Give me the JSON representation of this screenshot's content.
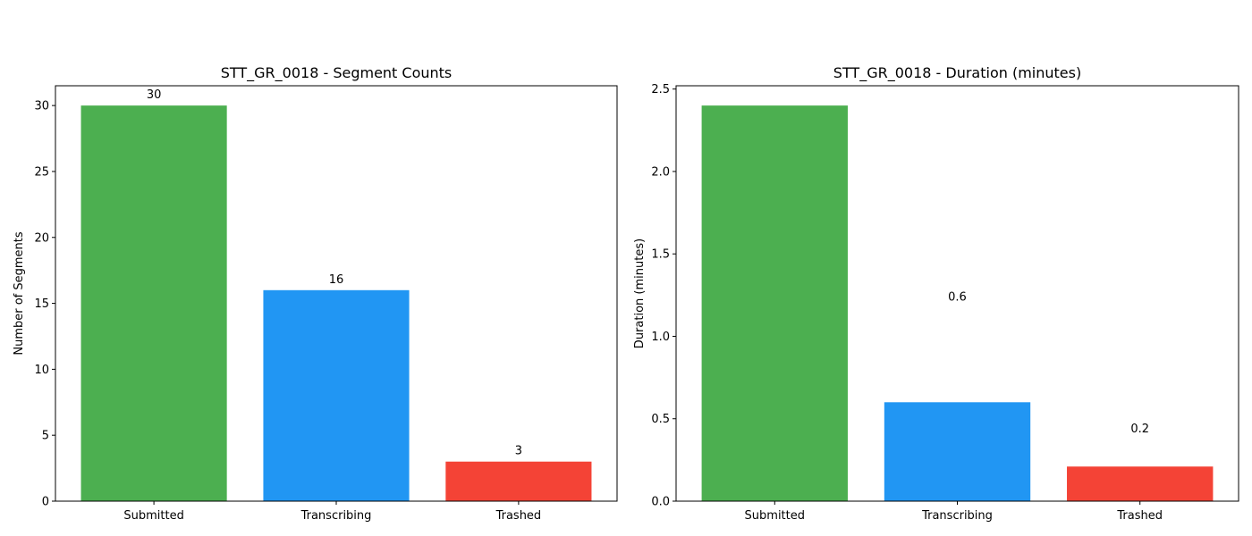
{
  "chart_data": [
    {
      "type": "bar",
      "title": "STT_GR_0018 - Segment Counts",
      "xlabel": "",
      "ylabel": "Number of Segments",
      "categories": [
        "Submitted",
        "Transcribing",
        "Trashed"
      ],
      "values": [
        30,
        16,
        3
      ],
      "data_labels": [
        "30",
        "16",
        "3"
      ],
      "colors": [
        "#4caf50",
        "#2196f3",
        "#f44336"
      ],
      "ylim": [
        0,
        31.5
      ],
      "yticks": [
        0,
        5,
        10,
        15,
        20,
        25,
        30
      ],
      "ytick_labels": [
        "0",
        "5",
        "10",
        "15",
        "20",
        "25",
        "30"
      ],
      "grid": false
    },
    {
      "type": "bar",
      "title": "STT_GR_0018 - Duration (minutes)",
      "xlabel": "",
      "ylabel": "Duration (minutes)",
      "categories": [
        "Submitted",
        "Transcribing",
        "Trashed"
      ],
      "values": [
        2.4,
        0.6,
        0.21
      ],
      "data_labels": [
        "2.4",
        "0.6",
        "0.2"
      ],
      "data_label_values": [
        2.4,
        0.6,
        0.2
      ],
      "colors": [
        "#4caf50",
        "#2196f3",
        "#f44336"
      ],
      "ylim": [
        0,
        2.52
      ],
      "yticks": [
        0,
        0.5,
        1.0,
        1.5,
        2.0,
        2.5
      ],
      "ytick_labels": [
        "0.0",
        "0.5",
        "1.0",
        "1.5",
        "2.0",
        "2.5"
      ],
      "grid": false
    }
  ]
}
